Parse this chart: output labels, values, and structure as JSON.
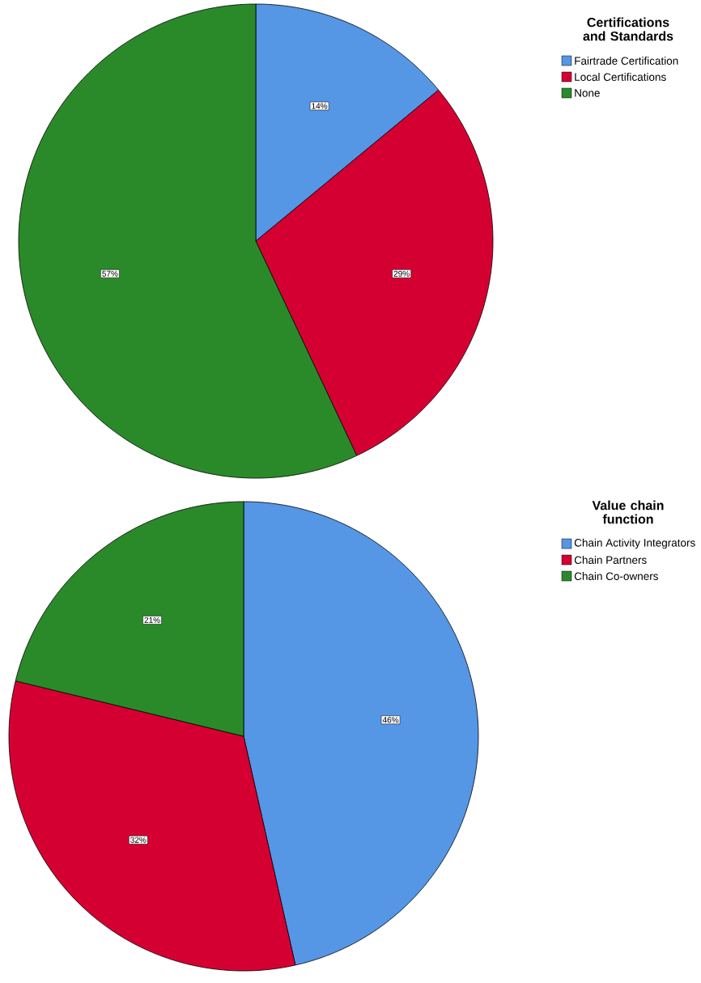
{
  "chart_data": [
    {
      "type": "pie",
      "legend_title": "Certifications and Standards",
      "legend": "right",
      "categories": [
        "Fairtrade Certification",
        "Local Certifications",
        "None"
      ],
      "values": [
        14,
        29,
        57
      ],
      "colors": [
        "#5596e5",
        "#d50032",
        "#2a8a2a"
      ],
      "value_labels": [
        "14%",
        "29%",
        "57%"
      ]
    },
    {
      "type": "pie",
      "legend_title": "Value chain function",
      "legend": "right",
      "categories": [
        "Chain Activity Integrators",
        "Chain Partners",
        "Chain Co-owners"
      ],
      "values": [
        46,
        32,
        21
      ],
      "colors": [
        "#5596e5",
        "#d50032",
        "#2a8a2a"
      ],
      "value_labels": [
        "46%",
        "32%",
        "21%"
      ]
    }
  ]
}
